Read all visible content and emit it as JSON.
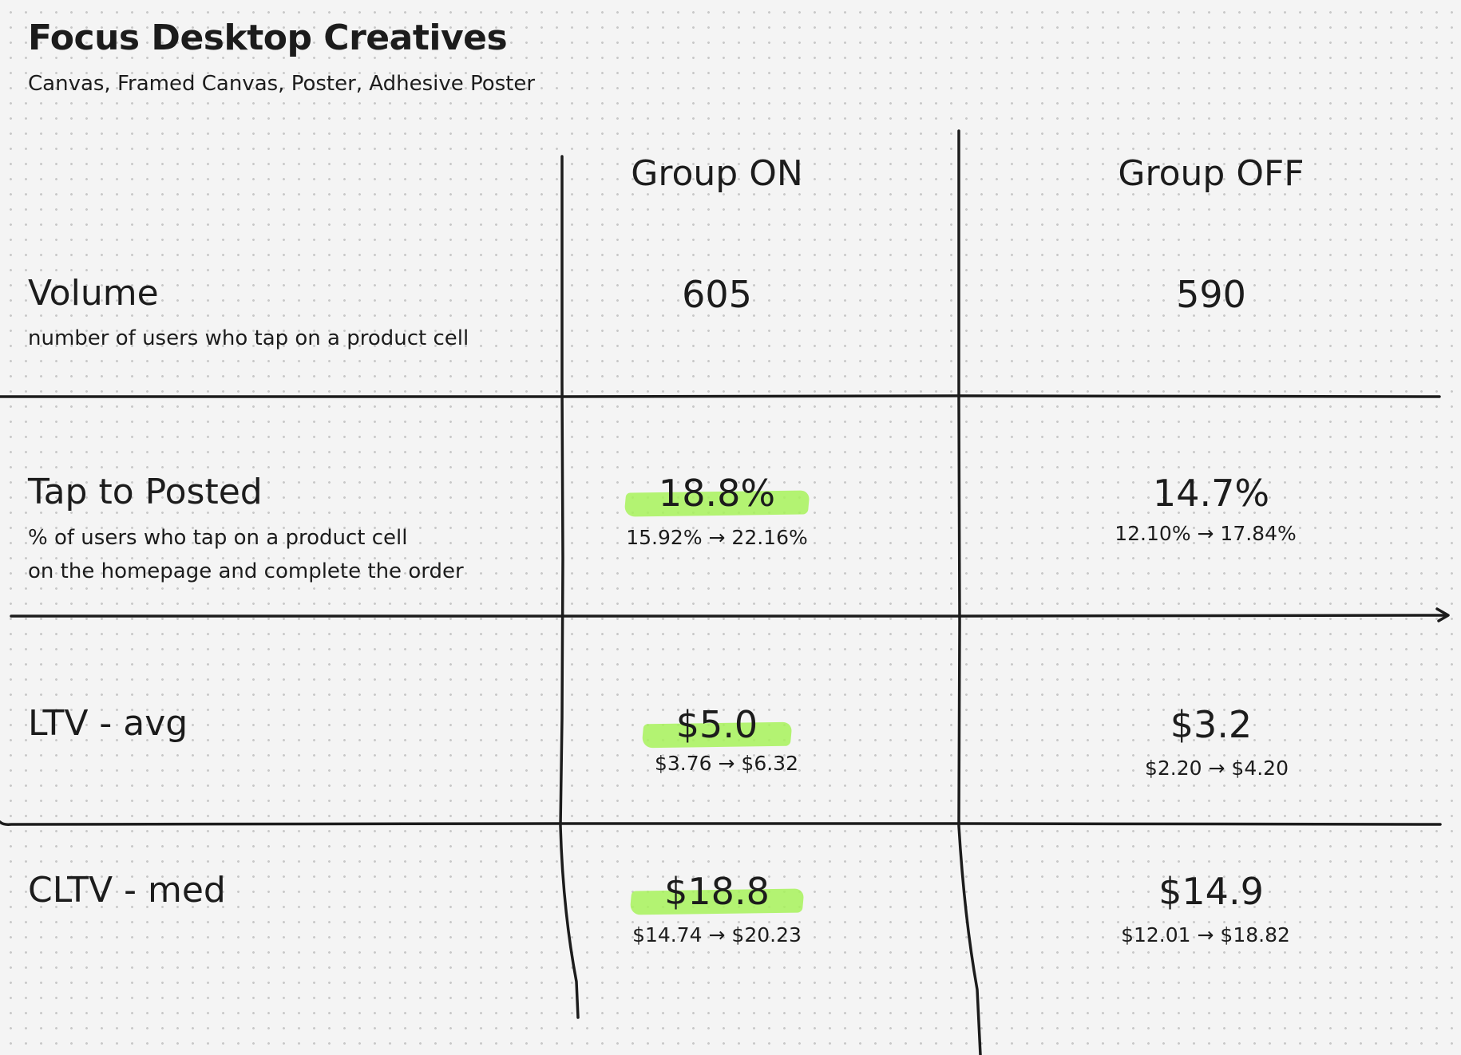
{
  "title": "Focus Desktop Creatives",
  "subtitle": "Canvas, Framed Canvas, Poster, Adhesive Poster",
  "columns": {
    "on": "Group ON",
    "off": "Group OFF"
  },
  "metrics": {
    "volume": {
      "name": "Volume",
      "desc_line1": "number of users who tap on a product cell",
      "on_value": "605",
      "off_value": "590"
    },
    "tap_to_posted": {
      "name": "Tap to Posted",
      "desc_line1": "% of users who tap on a product cell",
      "desc_line2": "on the homepage and complete the order",
      "on_value": "18.8%",
      "on_range": "15.92% → 22.16%",
      "off_value": "14.7%",
      "off_range": "12.10% → 17.84%"
    },
    "ltv_avg": {
      "name": "LTV - avg",
      "on_value": "$5.0",
      "on_range": "$3.76 → $6.32",
      "off_value": "$3.2",
      "off_range": "$2.20 → $4.20"
    },
    "cltv_med": {
      "name": "CLTV - med",
      "on_value": "$18.8",
      "on_range": "$14.74 → $20.23",
      "off_value": "$14.9",
      "off_range": "$12.01 → $18.82"
    }
  },
  "colors": {
    "highlight": "#a7f25a",
    "ink": "#1c1c1c",
    "background": "#f4f4f4"
  }
}
